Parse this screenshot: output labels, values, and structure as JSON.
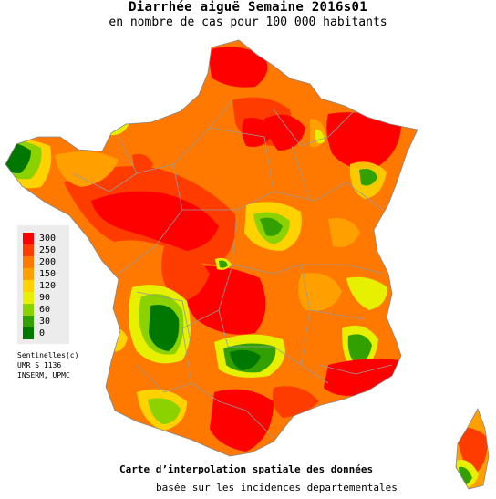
{
  "title": "Diarrhée aiguë Semaine 2016s01",
  "subtitle": "en nombre de cas pour 100 000 habitants",
  "legend": {
    "items": [
      {
        "label": "300",
        "color": "#ff0000"
      },
      {
        "label": "250",
        "color": "#ff3c00"
      },
      {
        "label": "200",
        "color": "#ff7800"
      },
      {
        "label": "150",
        "color": "#ffa000"
      },
      {
        "label": "120",
        "color": "#ffd200"
      },
      {
        "label": "90",
        "color": "#e6f000"
      },
      {
        "label": "60",
        "color": "#8cd200"
      },
      {
        "label": "30",
        "color": "#32a000"
      },
      {
        "label": "0",
        "color": "#007800"
      }
    ]
  },
  "credits": {
    "line1": "Sentinelles(c)",
    "line2": "UMR S 1136",
    "line3": "INSERM, UPMC"
  },
  "footer": {
    "line1": "Carte d’interpolation spatiale des données",
    "line2": "basée sur les incidences departementales"
  },
  "colors": {
    "very_high": "#ff0000",
    "high": "#ff3c00",
    "medium_high": "#ff7800",
    "medium": "#ffa000",
    "low_medium": "#ffd200",
    "low": "#e6f000",
    "very_low": "#8cd200",
    "minimal": "#32a000",
    "none": "#007800",
    "borders": "#999999"
  }
}
